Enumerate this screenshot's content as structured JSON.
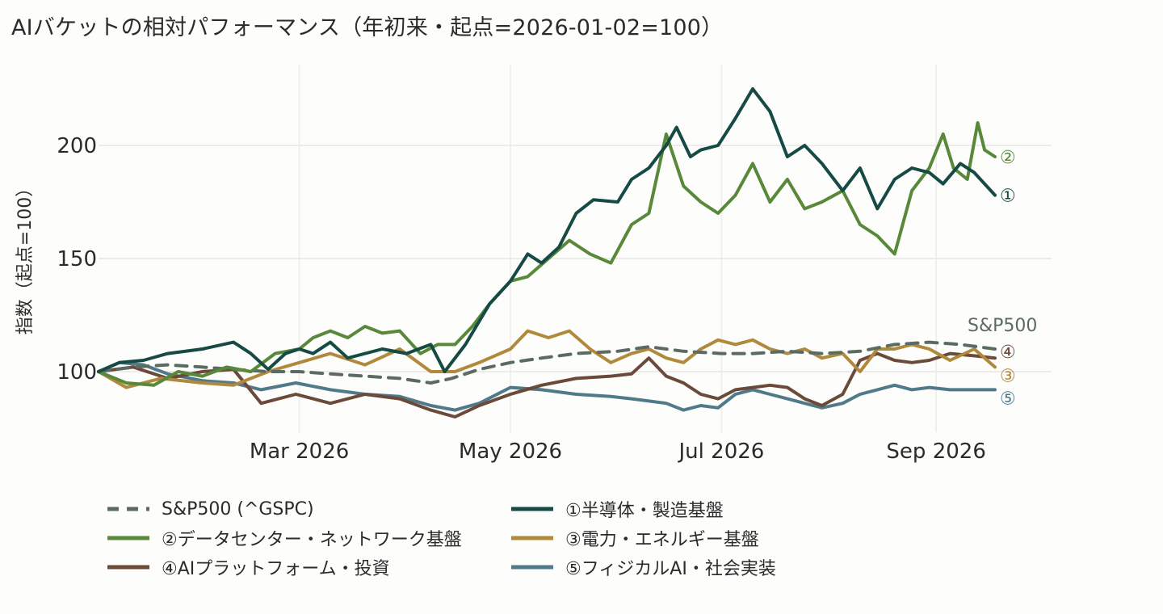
{
  "title": "AIバケットの相対パフォーマンス（年初来・起点=2026-01-02=100）",
  "chart_data": {
    "type": "line",
    "xlabel": "",
    "ylabel": "指数（起点=100）",
    "x_range": [
      "2026-01-02",
      "2026-09-18"
    ],
    "ylim": [
      72,
      230
    ],
    "x_ticks": [
      {
        "date": "2026-03-01",
        "label": "Mar 2026"
      },
      {
        "date": "2026-05-01",
        "label": "May 2026"
      },
      {
        "date": "2026-07-01",
        "label": "Jul 2026"
      },
      {
        "date": "2026-09-01",
        "label": "Sep 2026"
      }
    ],
    "y_ticks": [
      100,
      150,
      200
    ],
    "grid": true,
    "legend_position": "bottom",
    "series": [
      {
        "name": "S&P500 (^GSPC)",
        "end_label": "S&P500",
        "color": "#5b6b63",
        "dash": true,
        "points": [
          [
            "2026-01-02",
            100
          ],
          [
            "2026-01-12",
            102
          ],
          [
            "2026-01-22",
            103
          ],
          [
            "2026-02-01",
            102
          ],
          [
            "2026-02-10",
            101
          ],
          [
            "2026-02-20",
            100
          ],
          [
            "2026-03-01",
            100
          ],
          [
            "2026-03-10",
            99
          ],
          [
            "2026-03-20",
            98
          ],
          [
            "2026-03-30",
            97
          ],
          [
            "2026-04-08",
            95
          ],
          [
            "2026-04-14",
            97
          ],
          [
            "2026-04-22",
            101
          ],
          [
            "2026-05-01",
            104
          ],
          [
            "2026-05-10",
            106
          ],
          [
            "2026-05-20",
            108
          ],
          [
            "2026-06-01",
            109
          ],
          [
            "2026-06-10",
            111
          ],
          [
            "2026-06-20",
            109
          ],
          [
            "2026-07-01",
            108
          ],
          [
            "2026-07-10",
            108
          ],
          [
            "2026-07-20",
            109
          ],
          [
            "2026-07-30",
            108
          ],
          [
            "2026-08-10",
            109
          ],
          [
            "2026-08-20",
            112
          ],
          [
            "2026-08-30",
            113
          ],
          [
            "2026-09-08",
            112
          ],
          [
            "2026-09-18",
            110
          ]
        ]
      },
      {
        "name": "①半導体・製造基盤",
        "end_label": "①",
        "color": "#164a44",
        "dash": false,
        "points": [
          [
            "2026-01-02",
            100
          ],
          [
            "2026-01-08",
            104
          ],
          [
            "2026-01-15",
            105
          ],
          [
            "2026-01-22",
            108
          ],
          [
            "2026-02-01",
            110
          ],
          [
            "2026-02-10",
            113
          ],
          [
            "2026-02-15",
            108
          ],
          [
            "2026-02-20",
            101
          ],
          [
            "2026-02-25",
            108
          ],
          [
            "2026-03-01",
            110
          ],
          [
            "2026-03-05",
            108
          ],
          [
            "2026-03-10",
            113
          ],
          [
            "2026-03-15",
            106
          ],
          [
            "2026-03-25",
            110
          ],
          [
            "2026-04-01",
            108
          ],
          [
            "2026-04-08",
            112
          ],
          [
            "2026-04-12",
            100
          ],
          [
            "2026-04-18",
            112
          ],
          [
            "2026-04-25",
            130
          ],
          [
            "2026-05-01",
            140
          ],
          [
            "2026-05-06",
            152
          ],
          [
            "2026-05-10",
            148
          ],
          [
            "2026-05-15",
            155
          ],
          [
            "2026-05-20",
            170
          ],
          [
            "2026-05-25",
            176
          ],
          [
            "2026-06-01",
            175
          ],
          [
            "2026-06-05",
            185
          ],
          [
            "2026-06-10",
            190
          ],
          [
            "2026-06-15",
            200
          ],
          [
            "2026-06-18",
            208
          ],
          [
            "2026-06-22",
            195
          ],
          [
            "2026-06-25",
            198
          ],
          [
            "2026-06-30",
            200
          ],
          [
            "2026-07-05",
            212
          ],
          [
            "2026-07-10",
            225
          ],
          [
            "2026-07-15",
            215
          ],
          [
            "2026-07-20",
            195
          ],
          [
            "2026-07-25",
            200
          ],
          [
            "2026-07-30",
            192
          ],
          [
            "2026-08-05",
            180
          ],
          [
            "2026-08-10",
            190
          ],
          [
            "2026-08-15",
            172
          ],
          [
            "2026-08-20",
            185
          ],
          [
            "2026-08-25",
            190
          ],
          [
            "2026-08-30",
            188
          ],
          [
            "2026-09-03",
            183
          ],
          [
            "2026-09-08",
            192
          ],
          [
            "2026-09-12",
            188
          ],
          [
            "2026-09-18",
            178
          ]
        ]
      },
      {
        "name": "②データセンター・ネットワーク基盤",
        "end_label": "②",
        "color": "#58893a",
        "dash": false,
        "points": [
          [
            "2026-01-02",
            100
          ],
          [
            "2026-01-10",
            95
          ],
          [
            "2026-01-18",
            94
          ],
          [
            "2026-01-25",
            100
          ],
          [
            "2026-02-01",
            98
          ],
          [
            "2026-02-08",
            102
          ],
          [
            "2026-02-15",
            100
          ],
          [
            "2026-02-22",
            108
          ],
          [
            "2026-03-01",
            110
          ],
          [
            "2026-03-05",
            115
          ],
          [
            "2026-03-10",
            118
          ],
          [
            "2026-03-15",
            115
          ],
          [
            "2026-03-20",
            120
          ],
          [
            "2026-03-25",
            117
          ],
          [
            "2026-03-30",
            118
          ],
          [
            "2026-04-05",
            108
          ],
          [
            "2026-04-10",
            112
          ],
          [
            "2026-04-15",
            112
          ],
          [
            "2026-04-20",
            120
          ],
          [
            "2026-04-25",
            130
          ],
          [
            "2026-05-01",
            140
          ],
          [
            "2026-05-06",
            142
          ],
          [
            "2026-05-12",
            150
          ],
          [
            "2026-05-18",
            158
          ],
          [
            "2026-05-24",
            152
          ],
          [
            "2026-05-30",
            148
          ],
          [
            "2026-06-05",
            165
          ],
          [
            "2026-06-10",
            170
          ],
          [
            "2026-06-15",
            205
          ],
          [
            "2026-06-20",
            182
          ],
          [
            "2026-06-25",
            175
          ],
          [
            "2026-06-30",
            170
          ],
          [
            "2026-07-05",
            178
          ],
          [
            "2026-07-10",
            192
          ],
          [
            "2026-07-15",
            175
          ],
          [
            "2026-07-20",
            185
          ],
          [
            "2026-07-25",
            172
          ],
          [
            "2026-07-30",
            175
          ],
          [
            "2026-08-05",
            180
          ],
          [
            "2026-08-10",
            165
          ],
          [
            "2026-08-15",
            160
          ],
          [
            "2026-08-20",
            152
          ],
          [
            "2026-08-25",
            180
          ],
          [
            "2026-08-30",
            190
          ],
          [
            "2026-09-03",
            205
          ],
          [
            "2026-09-06",
            190
          ],
          [
            "2026-09-10",
            185
          ],
          [
            "2026-09-13",
            210
          ],
          [
            "2026-09-15",
            198
          ],
          [
            "2026-09-18",
            195
          ]
        ]
      },
      {
        "name": "③電力・エネルギー基盤",
        "end_label": "③",
        "color": "#b0893c",
        "dash": false,
        "points": [
          [
            "2026-01-02",
            100
          ],
          [
            "2026-01-10",
            93
          ],
          [
            "2026-01-20",
            97
          ],
          [
            "2026-02-01",
            95
          ],
          [
            "2026-02-10",
            94
          ],
          [
            "2026-02-20",
            100
          ],
          [
            "2026-03-01",
            104
          ],
          [
            "2026-03-10",
            108
          ],
          [
            "2026-03-20",
            103
          ],
          [
            "2026-03-30",
            110
          ],
          [
            "2026-04-08",
            100
          ],
          [
            "2026-04-15",
            100
          ],
          [
            "2026-04-22",
            104
          ],
          [
            "2026-05-01",
            110
          ],
          [
            "2026-05-06",
            118
          ],
          [
            "2026-05-12",
            115
          ],
          [
            "2026-05-18",
            118
          ],
          [
            "2026-05-24",
            110
          ],
          [
            "2026-05-30",
            104
          ],
          [
            "2026-06-05",
            108
          ],
          [
            "2026-06-10",
            110
          ],
          [
            "2026-06-15",
            106
          ],
          [
            "2026-06-20",
            104
          ],
          [
            "2026-06-25",
            110
          ],
          [
            "2026-06-30",
            114
          ],
          [
            "2026-07-05",
            112
          ],
          [
            "2026-07-10",
            114
          ],
          [
            "2026-07-15",
            110
          ],
          [
            "2026-07-20",
            108
          ],
          [
            "2026-07-25",
            110
          ],
          [
            "2026-07-30",
            106
          ],
          [
            "2026-08-05",
            108
          ],
          [
            "2026-08-10",
            100
          ],
          [
            "2026-08-15",
            110
          ],
          [
            "2026-08-20",
            110
          ],
          [
            "2026-08-25",
            112
          ],
          [
            "2026-08-30",
            110
          ],
          [
            "2026-09-05",
            105
          ],
          [
            "2026-09-12",
            110
          ],
          [
            "2026-09-18",
            102
          ]
        ]
      },
      {
        "name": "④AIプラットフォーム・投資",
        "end_label": "④",
        "color": "#6b4a3a",
        "dash": false,
        "points": [
          [
            "2026-01-02",
            100
          ],
          [
            "2026-01-12",
            102
          ],
          [
            "2026-01-22",
            97
          ],
          [
            "2026-02-01",
            100
          ],
          [
            "2026-02-10",
            101
          ],
          [
            "2026-02-18",
            86
          ],
          [
            "2026-02-28",
            90
          ],
          [
            "2026-03-10",
            86
          ],
          [
            "2026-03-20",
            90
          ],
          [
            "2026-03-30",
            88
          ],
          [
            "2026-04-08",
            83
          ],
          [
            "2026-04-15",
            80
          ],
          [
            "2026-04-22",
            85
          ],
          [
            "2026-05-01",
            90
          ],
          [
            "2026-05-10",
            94
          ],
          [
            "2026-05-20",
            97
          ],
          [
            "2026-05-30",
            98
          ],
          [
            "2026-06-05",
            99
          ],
          [
            "2026-06-10",
            106
          ],
          [
            "2026-06-15",
            98
          ],
          [
            "2026-06-20",
            95
          ],
          [
            "2026-06-25",
            90
          ],
          [
            "2026-06-30",
            88
          ],
          [
            "2026-07-05",
            92
          ],
          [
            "2026-07-10",
            93
          ],
          [
            "2026-07-15",
            94
          ],
          [
            "2026-07-20",
            93
          ],
          [
            "2026-07-25",
            88
          ],
          [
            "2026-07-30",
            85
          ],
          [
            "2026-08-05",
            90
          ],
          [
            "2026-08-10",
            105
          ],
          [
            "2026-08-15",
            108
          ],
          [
            "2026-08-20",
            105
          ],
          [
            "2026-08-25",
            104
          ],
          [
            "2026-08-30",
            105
          ],
          [
            "2026-09-05",
            108
          ],
          [
            "2026-09-12",
            107
          ],
          [
            "2026-09-18",
            106
          ]
        ]
      },
      {
        "name": "⑤フィジカルAI・社会実装",
        "end_label": "⑤",
        "color": "#507a8a",
        "dash": false,
        "points": [
          [
            "2026-01-02",
            100
          ],
          [
            "2026-01-08",
            104
          ],
          [
            "2026-01-15",
            103
          ],
          [
            "2026-01-22",
            99
          ],
          [
            "2026-02-01",
            96
          ],
          [
            "2026-02-10",
            95
          ],
          [
            "2026-02-18",
            92
          ],
          [
            "2026-02-28",
            95
          ],
          [
            "2026-03-10",
            92
          ],
          [
            "2026-03-20",
            90
          ],
          [
            "2026-03-30",
            89
          ],
          [
            "2026-04-08",
            85
          ],
          [
            "2026-04-15",
            83
          ],
          [
            "2026-04-22",
            86
          ],
          [
            "2026-05-01",
            93
          ],
          [
            "2026-05-10",
            92
          ],
          [
            "2026-05-20",
            90
          ],
          [
            "2026-05-30",
            89
          ],
          [
            "2026-06-05",
            88
          ],
          [
            "2026-06-10",
            87
          ],
          [
            "2026-06-15",
            86
          ],
          [
            "2026-06-20",
            83
          ],
          [
            "2026-06-25",
            85
          ],
          [
            "2026-06-30",
            84
          ],
          [
            "2026-07-05",
            90
          ],
          [
            "2026-07-10",
            92
          ],
          [
            "2026-07-15",
            90
          ],
          [
            "2026-07-20",
            88
          ],
          [
            "2026-07-25",
            86
          ],
          [
            "2026-07-30",
            84
          ],
          [
            "2026-08-05",
            86
          ],
          [
            "2026-08-10",
            90
          ],
          [
            "2026-08-15",
            92
          ],
          [
            "2026-08-20",
            94
          ],
          [
            "2026-08-25",
            92
          ],
          [
            "2026-08-30",
            93
          ],
          [
            "2026-09-05",
            92
          ],
          [
            "2026-09-12",
            92
          ],
          [
            "2026-09-18",
            92
          ]
        ]
      }
    ]
  }
}
